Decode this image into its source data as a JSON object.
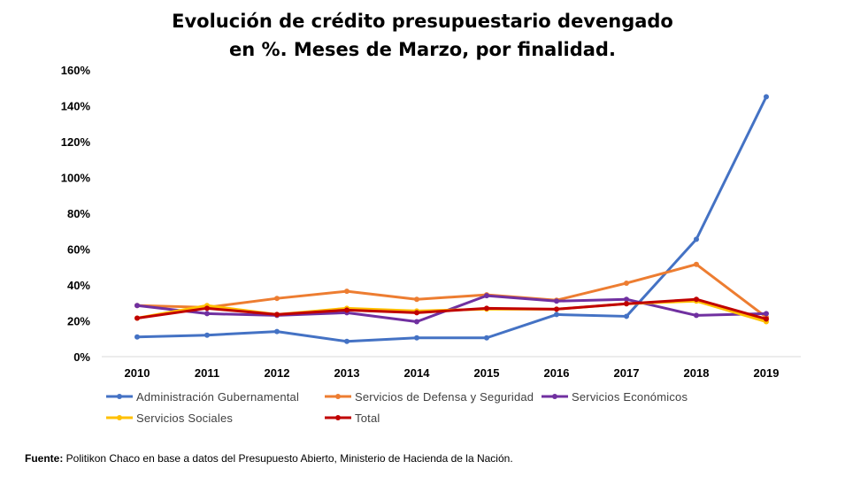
{
  "chart_data": {
    "type": "line",
    "title_lines": [
      "Evolución de crédito presupuestario devengado",
      "en %. Meses de Marzo, por finalidad."
    ],
    "categories": [
      "2010",
      "2011",
      "2012",
      "2013",
      "2014",
      "2015",
      "2016",
      "2017",
      "2018",
      "2019"
    ],
    "y_ticks": [
      "0%",
      "20%",
      "40%",
      "60%",
      "80%",
      "100%",
      "120%",
      "140%",
      "160%"
    ],
    "ylim": [
      0,
      160
    ],
    "grid": false,
    "legend_position": "bottom",
    "series": [
      {
        "name": "Administración Gubernamental",
        "color": "#4472C4",
        "values": [
          11,
          12,
          14,
          8.5,
          10.5,
          10.5,
          23.5,
          22.5,
          65.5,
          145
        ]
      },
      {
        "name": "Servicios de Defensa y Seguridad",
        "color": "#ED7D31",
        "values": [
          28.5,
          27.5,
          32.5,
          36.5,
          32,
          34.5,
          31.5,
          41,
          51.5,
          22
        ]
      },
      {
        "name": "Servicios Económicos",
        "color": "#7030A0",
        "values": [
          28.5,
          24,
          23,
          24.5,
          19.5,
          34,
          31,
          32,
          23,
          24
        ]
      },
      {
        "name": "Servicios Sociales",
        "color": "#FFC000",
        "values": [
          21.5,
          28.5,
          23.5,
          27,
          25.5,
          26.5,
          26.5,
          29.5,
          31,
          19.5
        ]
      },
      {
        "name": "Total",
        "color": "#C00000",
        "values": [
          21.5,
          27,
          23.5,
          26,
          24.5,
          27,
          26.5,
          29.5,
          32,
          21
        ]
      }
    ]
  },
  "source": {
    "label": "Fuente:",
    "text": " Politikon Chaco en base a datos del Presupuesto Abierto, Ministerio de Hacienda de la Nación."
  }
}
